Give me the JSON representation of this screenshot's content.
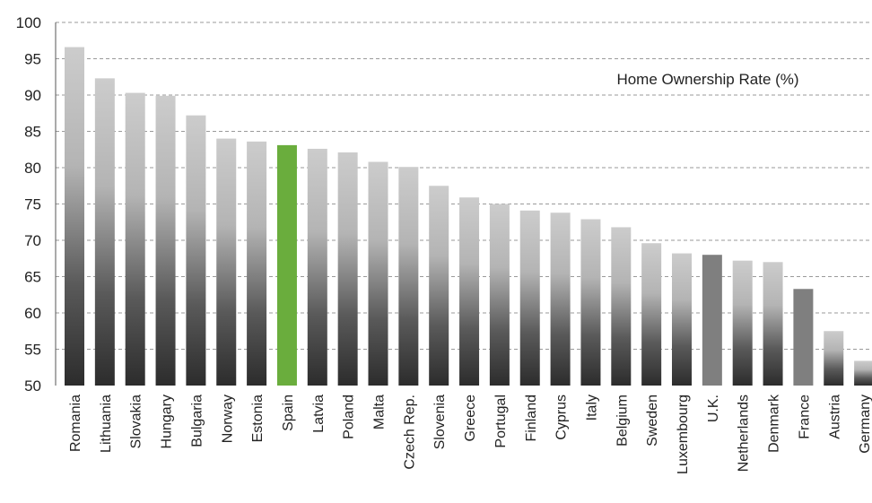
{
  "chart_data": {
    "type": "bar",
    "title": "Home Ownership Rate (%)",
    "xlabel": "",
    "ylabel": "",
    "ylim": [
      50,
      100
    ],
    "yticks": [
      50,
      55,
      60,
      65,
      70,
      75,
      80,
      85,
      90,
      95,
      100
    ],
    "grid": true,
    "categories": [
      "Romania",
      "Lithuania",
      "Slovakia",
      "Hungary",
      "Bulgaria",
      "Norway",
      "Estonia",
      "Spain",
      "Latvia",
      "Poland",
      "Malta",
      "Czech Rep.",
      "Slovenia",
      "Greece",
      "Portugal",
      "Finland",
      "Cyprus",
      "Italy",
      "Belgium",
      "Sweden",
      "Luxembourg",
      "U.K.",
      "Netherlands",
      "Denmark",
      "France",
      "Austria",
      "Germany"
    ],
    "values": [
      96.6,
      92.3,
      90.3,
      89.9,
      87.2,
      84.0,
      83.6,
      83.1,
      82.6,
      82.1,
      80.8,
      80.1,
      77.5,
      75.9,
      75.0,
      74.1,
      73.8,
      72.9,
      71.8,
      69.6,
      68.2,
      68.0,
      67.2,
      67.0,
      63.3,
      57.5,
      53.4
    ],
    "highlight": {
      "Spain": "#6aad3d",
      "U.K.": "#7f7f7f",
      "France": "#7f7f7f"
    },
    "colors": {
      "bar_top": "#c8c8c8",
      "bar_bottom": "#2a2a2a"
    }
  }
}
